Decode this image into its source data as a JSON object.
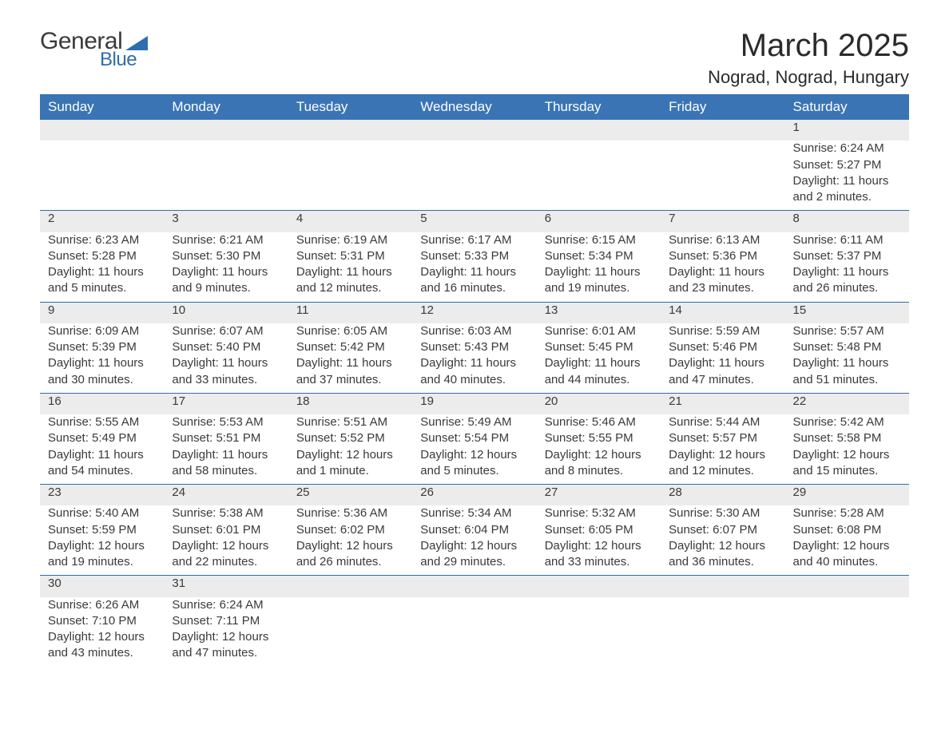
{
  "logo": {
    "general": "General",
    "blue": "Blue"
  },
  "title": "March 2025",
  "location": "Nograd, Nograd, Hungary",
  "colors": {
    "header_bg": "#3a74b4",
    "header_fg": "#ffffff",
    "daynum_bg": "#ececec",
    "row_divider": "#2f6dad",
    "text": "#3a3a3a",
    "logo_blue": "#2f6dad"
  },
  "daynames": [
    "Sunday",
    "Monday",
    "Tuesday",
    "Wednesday",
    "Thursday",
    "Friday",
    "Saturday"
  ],
  "weeks": [
    [
      null,
      null,
      null,
      null,
      null,
      null,
      {
        "n": "1",
        "sr": "Sunrise: 6:24 AM",
        "ss": "Sunset: 5:27 PM",
        "d1": "Daylight: 11 hours",
        "d2": "and 2 minutes."
      }
    ],
    [
      {
        "n": "2",
        "sr": "Sunrise: 6:23 AM",
        "ss": "Sunset: 5:28 PM",
        "d1": "Daylight: 11 hours",
        "d2": "and 5 minutes."
      },
      {
        "n": "3",
        "sr": "Sunrise: 6:21 AM",
        "ss": "Sunset: 5:30 PM",
        "d1": "Daylight: 11 hours",
        "d2": "and 9 minutes."
      },
      {
        "n": "4",
        "sr": "Sunrise: 6:19 AM",
        "ss": "Sunset: 5:31 PM",
        "d1": "Daylight: 11 hours",
        "d2": "and 12 minutes."
      },
      {
        "n": "5",
        "sr": "Sunrise: 6:17 AM",
        "ss": "Sunset: 5:33 PM",
        "d1": "Daylight: 11 hours",
        "d2": "and 16 minutes."
      },
      {
        "n": "6",
        "sr": "Sunrise: 6:15 AM",
        "ss": "Sunset: 5:34 PM",
        "d1": "Daylight: 11 hours",
        "d2": "and 19 minutes."
      },
      {
        "n": "7",
        "sr": "Sunrise: 6:13 AM",
        "ss": "Sunset: 5:36 PM",
        "d1": "Daylight: 11 hours",
        "d2": "and 23 minutes."
      },
      {
        "n": "8",
        "sr": "Sunrise: 6:11 AM",
        "ss": "Sunset: 5:37 PM",
        "d1": "Daylight: 11 hours",
        "d2": "and 26 minutes."
      }
    ],
    [
      {
        "n": "9",
        "sr": "Sunrise: 6:09 AM",
        "ss": "Sunset: 5:39 PM",
        "d1": "Daylight: 11 hours",
        "d2": "and 30 minutes."
      },
      {
        "n": "10",
        "sr": "Sunrise: 6:07 AM",
        "ss": "Sunset: 5:40 PM",
        "d1": "Daylight: 11 hours",
        "d2": "and 33 minutes."
      },
      {
        "n": "11",
        "sr": "Sunrise: 6:05 AM",
        "ss": "Sunset: 5:42 PM",
        "d1": "Daylight: 11 hours",
        "d2": "and 37 minutes."
      },
      {
        "n": "12",
        "sr": "Sunrise: 6:03 AM",
        "ss": "Sunset: 5:43 PM",
        "d1": "Daylight: 11 hours",
        "d2": "and 40 minutes."
      },
      {
        "n": "13",
        "sr": "Sunrise: 6:01 AM",
        "ss": "Sunset: 5:45 PM",
        "d1": "Daylight: 11 hours",
        "d2": "and 44 minutes."
      },
      {
        "n": "14",
        "sr": "Sunrise: 5:59 AM",
        "ss": "Sunset: 5:46 PM",
        "d1": "Daylight: 11 hours",
        "d2": "and 47 minutes."
      },
      {
        "n": "15",
        "sr": "Sunrise: 5:57 AM",
        "ss": "Sunset: 5:48 PM",
        "d1": "Daylight: 11 hours",
        "d2": "and 51 minutes."
      }
    ],
    [
      {
        "n": "16",
        "sr": "Sunrise: 5:55 AM",
        "ss": "Sunset: 5:49 PM",
        "d1": "Daylight: 11 hours",
        "d2": "and 54 minutes."
      },
      {
        "n": "17",
        "sr": "Sunrise: 5:53 AM",
        "ss": "Sunset: 5:51 PM",
        "d1": "Daylight: 11 hours",
        "d2": "and 58 minutes."
      },
      {
        "n": "18",
        "sr": "Sunrise: 5:51 AM",
        "ss": "Sunset: 5:52 PM",
        "d1": "Daylight: 12 hours",
        "d2": "and 1 minute."
      },
      {
        "n": "19",
        "sr": "Sunrise: 5:49 AM",
        "ss": "Sunset: 5:54 PM",
        "d1": "Daylight: 12 hours",
        "d2": "and 5 minutes."
      },
      {
        "n": "20",
        "sr": "Sunrise: 5:46 AM",
        "ss": "Sunset: 5:55 PM",
        "d1": "Daylight: 12 hours",
        "d2": "and 8 minutes."
      },
      {
        "n": "21",
        "sr": "Sunrise: 5:44 AM",
        "ss": "Sunset: 5:57 PM",
        "d1": "Daylight: 12 hours",
        "d2": "and 12 minutes."
      },
      {
        "n": "22",
        "sr": "Sunrise: 5:42 AM",
        "ss": "Sunset: 5:58 PM",
        "d1": "Daylight: 12 hours",
        "d2": "and 15 minutes."
      }
    ],
    [
      {
        "n": "23",
        "sr": "Sunrise: 5:40 AM",
        "ss": "Sunset: 5:59 PM",
        "d1": "Daylight: 12 hours",
        "d2": "and 19 minutes."
      },
      {
        "n": "24",
        "sr": "Sunrise: 5:38 AM",
        "ss": "Sunset: 6:01 PM",
        "d1": "Daylight: 12 hours",
        "d2": "and 22 minutes."
      },
      {
        "n": "25",
        "sr": "Sunrise: 5:36 AM",
        "ss": "Sunset: 6:02 PM",
        "d1": "Daylight: 12 hours",
        "d2": "and 26 minutes."
      },
      {
        "n": "26",
        "sr": "Sunrise: 5:34 AM",
        "ss": "Sunset: 6:04 PM",
        "d1": "Daylight: 12 hours",
        "d2": "and 29 minutes."
      },
      {
        "n": "27",
        "sr": "Sunrise: 5:32 AM",
        "ss": "Sunset: 6:05 PM",
        "d1": "Daylight: 12 hours",
        "d2": "and 33 minutes."
      },
      {
        "n": "28",
        "sr": "Sunrise: 5:30 AM",
        "ss": "Sunset: 6:07 PM",
        "d1": "Daylight: 12 hours",
        "d2": "and 36 minutes."
      },
      {
        "n": "29",
        "sr": "Sunrise: 5:28 AM",
        "ss": "Sunset: 6:08 PM",
        "d1": "Daylight: 12 hours",
        "d2": "and 40 minutes."
      }
    ],
    [
      {
        "n": "30",
        "sr": "Sunrise: 6:26 AM",
        "ss": "Sunset: 7:10 PM",
        "d1": "Daylight: 12 hours",
        "d2": "and 43 minutes."
      },
      {
        "n": "31",
        "sr": "Sunrise: 6:24 AM",
        "ss": "Sunset: 7:11 PM",
        "d1": "Daylight: 12 hours",
        "d2": "and 47 minutes."
      },
      null,
      null,
      null,
      null,
      null
    ]
  ]
}
